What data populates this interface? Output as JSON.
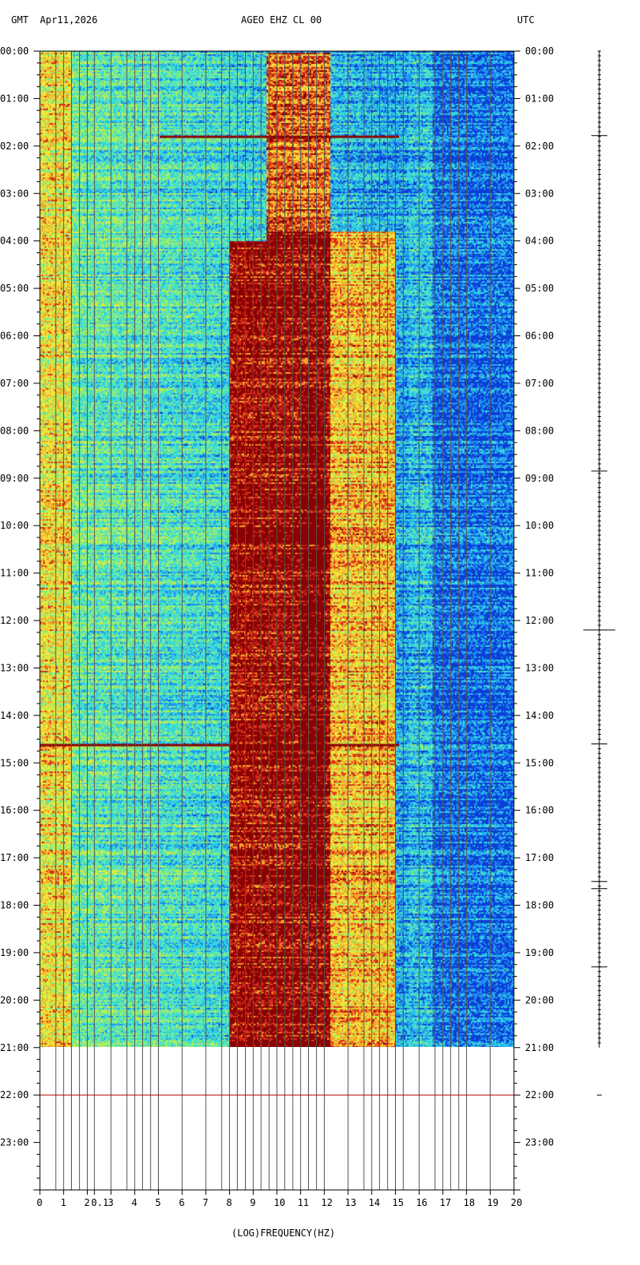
{
  "header": {
    "left_tz": "GMT",
    "date": "Apr11,2026",
    "station": "AGEO EHZ CL 00",
    "right_tz": "UTC"
  },
  "chart_data": {
    "type": "heatmap",
    "title": "AGEO EHZ CL 00",
    "xlabel": "(LOG)FREQUENCY(HZ)",
    "ylabel": "",
    "x_ticks": [
      "0",
      "1",
      "2",
      "0.1",
      "3",
      "4",
      "5",
      "6",
      "7",
      "8",
      "9",
      "10",
      "11",
      "12",
      "13",
      "14",
      "15",
      "16",
      "17",
      "18",
      "19",
      "20"
    ],
    "x_tick_values": [
      0,
      1,
      2,
      2.3,
      3,
      4,
      5,
      6,
      7,
      8,
      9,
      10,
      11,
      12,
      13,
      14,
      15,
      16,
      17,
      18,
      19,
      20
    ],
    "xlim": [
      0,
      20
    ],
    "y_ticks": [
      "00:00",
      "01:00",
      "02:00",
      "03:00",
      "04:00",
      "05:00",
      "06:00",
      "07:00",
      "08:00",
      "09:00",
      "10:00",
      "11:00",
      "12:00",
      "13:00",
      "14:00",
      "15:00",
      "16:00",
      "17:00",
      "18:00",
      "19:00",
      "20:00",
      "21:00",
      "22:00",
      "23:00"
    ],
    "ylim_hours": [
      0,
      24
    ],
    "data_end_hour": 21,
    "gap_line_hour": 22,
    "log_grid_positions": [
      0.67,
      1.0,
      1.33,
      1.67,
      2.0,
      2.3,
      3.0,
      3.67,
      4.0,
      4.33,
      4.67,
      5.0,
      6.0,
      7.0,
      7.67,
      8.0,
      8.33,
      8.67,
      9.0,
      9.33,
      9.67,
      10.0,
      10.33,
      10.67,
      11.0,
      11.33,
      11.67,
      12.0,
      13.0,
      13.67,
      14.0,
      14.33,
      14.67,
      15.0,
      15.33,
      16.0,
      16.67,
      17.0,
      17.33,
      17.67,
      18.0,
      19.0
    ],
    "colormap": [
      "#0b3fd6",
      "#1f8ef0",
      "#32d3e0",
      "#5ee7b0",
      "#a8ee5c",
      "#f0e83a",
      "#f5a52a",
      "#d9301b",
      "#8b0000"
    ],
    "features": [
      {
        "name": "low-frequency band",
        "x_range": [
          0,
          1.3
        ],
        "hours": [
          0,
          21
        ],
        "level": 0.62
      },
      {
        "name": "microseism band",
        "x_range": [
          8,
          12.2
        ],
        "hours": [
          3.8,
          21
        ],
        "level": 0.95
      },
      {
        "name": "strong core",
        "x_range": [
          11,
          12
        ],
        "hours": [
          7.2,
          18
        ],
        "level": 1.0
      },
      {
        "name": "high-frequency",
        "x_range": [
          16.5,
          20
        ],
        "hours": [
          0,
          21
        ],
        "level": 0.12
      }
    ],
    "trace_events_hours": [
      1.78,
      8.85,
      12.2,
      14.6,
      17.5,
      17.65,
      19.3
    ]
  }
}
